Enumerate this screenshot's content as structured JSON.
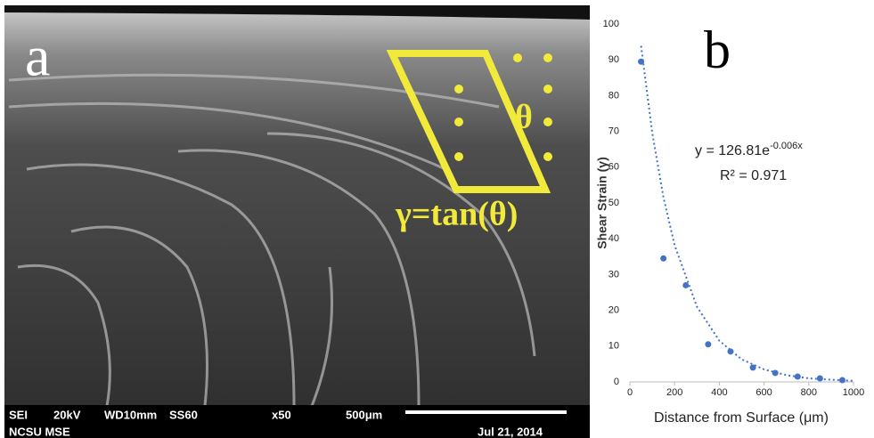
{
  "panel_a": {
    "label": "a",
    "angle_symbol": "θ",
    "formula": "γ=tan(θ)",
    "info_bar": {
      "mode": "SEI",
      "voltage": "20kV",
      "working_distance": "WD10mm",
      "spot_size": "SS60",
      "magnification": "x50",
      "scale": "500μm",
      "lab": "NCSU MSE",
      "date": "Jul 21, 2014"
    }
  },
  "chart_data": {
    "type": "scatter",
    "panel_label": "b",
    "x_label": "Distance from Surface (μm)",
    "y_label": "Shear Strain (γ)",
    "equation": "y = 126.81e",
    "equation_exponent": "-0.006x",
    "r_squared": "R² = 0.971",
    "x": [
      50,
      150,
      250,
      350,
      450,
      550,
      650,
      750,
      850,
      950
    ],
    "values": [
      89.5,
      34.5,
      27,
      10.5,
      8.5,
      4,
      2.5,
      1.5,
      1,
      0.5
    ],
    "color": "#4472c4",
    "trendline": {
      "x": [
        50,
        100,
        150,
        200,
        300,
        400,
        500,
        600,
        700,
        800,
        900,
        1000
      ],
      "values": [
        93.9,
        69.6,
        51.6,
        38.2,
        21.0,
        11.5,
        6.3,
        3.5,
        1.9,
        1.0,
        0.6,
        0.3
      ]
    },
    "xlim": [
      0,
      1000
    ],
    "xticks": [
      0,
      200,
      400,
      600,
      800,
      1000
    ],
    "ylim": [
      0,
      100
    ],
    "yticks": [
      0,
      10,
      20,
      30,
      40,
      50,
      60,
      70,
      80,
      90,
      100
    ],
    "grid": false
  }
}
